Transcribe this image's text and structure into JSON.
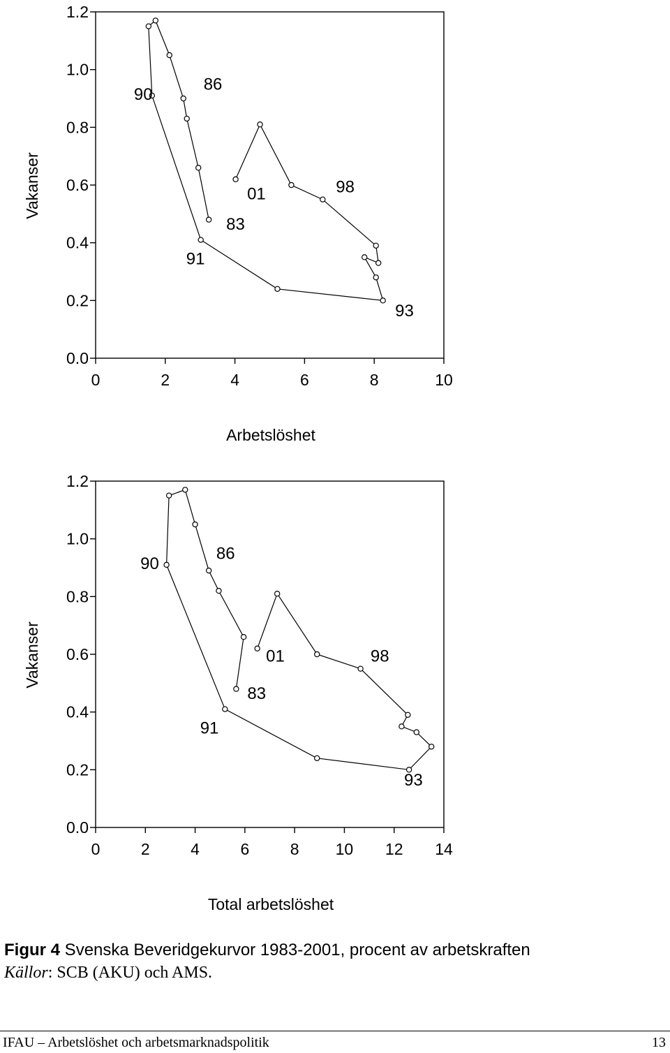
{
  "chart_data": [
    {
      "type": "scatter",
      "connected": true,
      "xlabel": "Arbetslöshet",
      "ylabel": "Vakanser",
      "xlim": [
        0,
        10
      ],
      "ylim": [
        0.0,
        1.2
      ],
      "xticks": [
        "0",
        "2",
        "4",
        "6",
        "8",
        "10"
      ],
      "yticks": [
        "0.0",
        "0.2",
        "0.4",
        "0.6",
        "0.8",
        "1.0",
        "1.2"
      ],
      "x": [
        3.25,
        2.95,
        2.62,
        2.52,
        2.12,
        1.72,
        1.52,
        1.62,
        3.02,
        5.22,
        8.25,
        8.05,
        7.72,
        8.12,
        8.05,
        6.52,
        5.62,
        4.72,
        4.02
      ],
      "y": [
        0.48,
        0.66,
        0.83,
        0.9,
        1.05,
        1.17,
        1.15,
        0.91,
        0.41,
        0.24,
        0.2,
        0.28,
        0.35,
        0.33,
        0.39,
        0.55,
        0.6,
        0.81,
        0.62
      ],
      "point_labels": [
        {
          "text": "83",
          "x": 3.75,
          "y": 0.445
        },
        {
          "text": "86",
          "x": 3.1,
          "y": 0.93
        },
        {
          "text": "90",
          "x": 1.1,
          "y": 0.895
        },
        {
          "text": "91",
          "x": 2.6,
          "y": 0.325
        },
        {
          "text": "93",
          "x": 8.6,
          "y": 0.145
        },
        {
          "text": "98",
          "x": 6.9,
          "y": 0.575
        },
        {
          "text": "01",
          "x": 4.35,
          "y": 0.55
        }
      ]
    },
    {
      "type": "scatter",
      "connected": true,
      "xlabel": "Total arbetslöshet",
      "ylabel": "Vakanser",
      "xlim": [
        0,
        14
      ],
      "ylim": [
        0.0,
        1.2
      ],
      "xticks": [
        "0",
        "2",
        "4",
        "6",
        "8",
        "10",
        "12",
        "14"
      ],
      "yticks": [
        "0.0",
        "0.2",
        "0.4",
        "0.6",
        "0.8",
        "1.0",
        "1.2"
      ],
      "x": [
        5.65,
        5.95,
        4.95,
        4.55,
        4.0,
        3.6,
        2.95,
        2.85,
        5.2,
        8.9,
        12.6,
        13.5,
        12.9,
        12.3,
        12.55,
        10.65,
        8.9,
        7.3,
        6.5
      ],
      "y": [
        0.48,
        0.66,
        0.82,
        0.89,
        1.05,
        1.17,
        1.15,
        0.91,
        0.41,
        0.24,
        0.2,
        0.28,
        0.33,
        0.35,
        0.39,
        0.55,
        0.6,
        0.81,
        0.62
      ],
      "point_labels": [
        {
          "text": "83",
          "x": 6.1,
          "y": 0.445
        },
        {
          "text": "86",
          "x": 4.85,
          "y": 0.93
        },
        {
          "text": "90",
          "x": 1.8,
          "y": 0.895
        },
        {
          "text": "91",
          "x": 4.2,
          "y": 0.325
        },
        {
          "text": "93",
          "x": 12.4,
          "y": 0.145
        },
        {
          "text": "98",
          "x": 11.05,
          "y": 0.575
        },
        {
          "text": "01",
          "x": 6.85,
          "y": 0.575
        }
      ]
    }
  ],
  "caption": {
    "label": "Figur 4",
    "text": " Svenska Beveridgekurvor 1983-2001, procent av arbetskraften"
  },
  "source": {
    "label": "Källor",
    "text": ": SCB (AKU) och AMS."
  },
  "footer": {
    "left": "IFAU – Arbetslöshet och arbetsmarknadspolitik",
    "page": "13"
  }
}
